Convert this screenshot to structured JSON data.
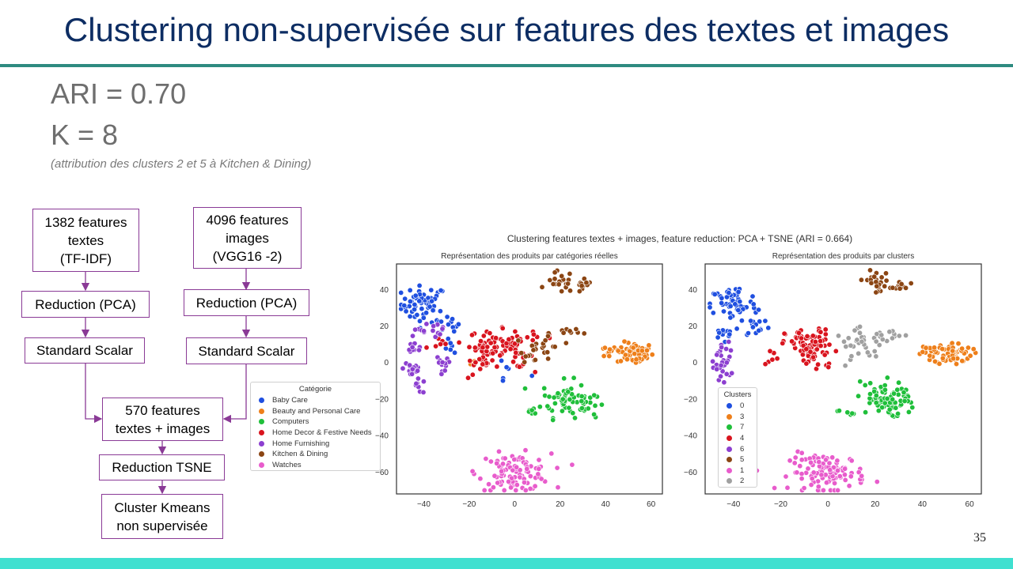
{
  "slide": {
    "title": "Clustering non-supervisée sur features des textes et images",
    "metric_ari": "ARI = 0.70",
    "metric_k": "K = 8",
    "note": "(attribution des clusters 2 et 5 à Kitchen & Dining)",
    "page_number": "35"
  },
  "flow": {
    "text_features": [
      "1382 features",
      "textes",
      "(TF-IDF)"
    ],
    "image_features": [
      "4096 features",
      "images",
      "(VGG16 -2)"
    ],
    "reduction_pca_text": "Reduction (PCA)",
    "reduction_pca_image": "Reduction (PCA)",
    "scaler_text": "Standard Scalar",
    "scaler_image": "Standard Scalar",
    "combined": [
      "570 features",
      "textes + images"
    ],
    "reduction_tsne": "Reduction TSNE",
    "kmeans": [
      "Cluster Kmeans",
      "non supervisée"
    ]
  },
  "colors": {
    "title": "#0d2d63",
    "rule": "#2e8b80",
    "bottom_bar": "#40e0d0",
    "box_border": "#8a3a96"
  },
  "chart_data": [
    {
      "type": "scatter",
      "figure_title": "Clustering features textes + images, feature reduction: PCA + TSNE (ARI = 0.664)",
      "title": "Représentation des produits par catégories réelles",
      "xlim": [
        -52,
        65
      ],
      "ylim": [
        -72,
        54
      ],
      "xticks": [
        -40,
        -20,
        0,
        20,
        40,
        60
      ],
      "yticks": [
        40,
        20,
        0,
        -20,
        -40,
        -60
      ],
      "grid": false,
      "legend": {
        "title": "Catégorie",
        "placement": "left-outside",
        "entries": [
          {
            "name": "Baby Care",
            "color": "#1f4fe0"
          },
          {
            "name": "Beauty and Personal Care",
            "color": "#ee7f1a"
          },
          {
            "name": "Computers",
            "color": "#1fbf3a"
          },
          {
            "name": "Home Decor & Festive Needs",
            "color": "#d9141e"
          },
          {
            "name": "Home Furnishing",
            "color": "#8c3fd0"
          },
          {
            "name": "Kitchen & Dining",
            "color": "#8b4513"
          },
          {
            "name": "Watches",
            "color": "#e85ccc"
          }
        ]
      },
      "series": [
        {
          "name": "Baby Care",
          "color": "#1f4fe0",
          "groups": [
            [
              -40,
              32,
              5,
              5,
              60
            ],
            [
              -30,
              20,
              3,
              3,
              12
            ],
            [
              -28,
              8,
              2,
              2,
              6
            ],
            [
              -3,
              -5,
              5,
              4,
              6
            ]
          ]
        },
        {
          "name": "Beauty and Personal Care",
          "color": "#ee7f1a",
          "groups": [
            [
              53,
              5,
              4,
              3,
              60
            ],
            [
              42,
              6,
              3,
              2,
              12
            ],
            [
              -18,
              0,
              1,
              1,
              3
            ]
          ]
        },
        {
          "name": "Computers",
          "color": "#1fbf3a",
          "groups": [
            [
              22,
              -20,
              5,
              5,
              50
            ],
            [
              30,
              -22,
              3,
              4,
              20
            ],
            [
              8,
              -27,
              2,
              1,
              6
            ]
          ]
        },
        {
          "name": "Home Decor & Festive Needs",
          "color": "#d9141e",
          "groups": [
            [
              -10,
              10,
              5,
              4,
              55
            ],
            [
              0,
              5,
              4,
              4,
              25
            ],
            [
              -15,
              -3,
              4,
              3,
              12
            ],
            [
              10,
              14,
              5,
              2,
              10
            ],
            [
              -34,
              10,
              3,
              3,
              6
            ]
          ]
        },
        {
          "name": "Home Furnishing",
          "color": "#8c3fd0",
          "groups": [
            [
              -45,
              -3,
              2,
              3,
              20
            ],
            [
              -44,
              8,
              2,
              2,
              10
            ],
            [
              -42,
              -13,
              2,
              2,
              8
            ],
            [
              -42,
              18,
              2,
              2,
              6
            ],
            [
              -32,
              -3,
              2,
              4,
              12
            ],
            [
              -33,
              17,
              2,
              2,
              8
            ]
          ]
        },
        {
          "name": "Kitchen & Dining",
          "color": "#8b4513",
          "groups": [
            [
              20,
              44,
              3,
              3,
              20
            ],
            [
              30,
              41,
              2,
              2,
              12
            ],
            [
              26,
              17,
              5,
              1,
              10
            ],
            [
              13,
              8,
              4,
              4,
              18
            ],
            [
              6,
              3,
              2,
              2,
              6
            ]
          ]
        },
        {
          "name": "Watches",
          "color": "#e85ccc",
          "groups": [
            [
              0,
              -60,
              8,
              5,
              110
            ]
          ]
        }
      ]
    },
    {
      "type": "scatter",
      "title": "Représentation des produits par clusters",
      "xlim": [
        -52,
        65
      ],
      "ylim": [
        -72,
        54
      ],
      "xticks": [
        -40,
        -20,
        0,
        20,
        40,
        60
      ],
      "yticks": [
        40,
        20,
        0,
        -20,
        -40,
        -60
      ],
      "grid": false,
      "legend": {
        "title": "Clusters",
        "placement": "lower-left",
        "entries": [
          {
            "name": "0",
            "color": "#1f4fe0"
          },
          {
            "name": "3",
            "color": "#ee7f1a"
          },
          {
            "name": "7",
            "color": "#1fbf3a"
          },
          {
            "name": "4",
            "color": "#d9141e"
          },
          {
            "name": "6",
            "color": "#8c3fd0"
          },
          {
            "name": "5",
            "color": "#8b4513"
          },
          {
            "name": "1",
            "color": "#e85ccc"
          },
          {
            "name": "2",
            "color": "#a0a0a0"
          }
        ]
      },
      "series": [
        {
          "name": "0",
          "color": "#1f4fe0",
          "groups": [
            [
              -40,
              32,
              5,
              5,
              60
            ],
            [
              -30,
              20,
              3,
              3,
              15
            ],
            [
              -43,
              17,
              3,
              2,
              12
            ]
          ]
        },
        {
          "name": "3",
          "color": "#ee7f1a",
          "groups": [
            [
              53,
              5,
              4,
              3,
              60
            ],
            [
              42,
              6,
              3,
              2,
              15
            ]
          ]
        },
        {
          "name": "7",
          "color": "#1fbf3a",
          "groups": [
            [
              22,
              -20,
              5,
              5,
              55
            ],
            [
              30,
              -22,
              3,
              4,
              20
            ],
            [
              8,
              -27,
              2,
              1,
              6
            ]
          ]
        },
        {
          "name": "4",
          "color": "#d9141e",
          "groups": [
            [
              -8,
              10,
              5,
              4,
              70
            ],
            [
              -5,
              3,
              4,
              4,
              20
            ],
            [
              -22,
              3,
              2,
              3,
              6
            ]
          ]
        },
        {
          "name": "6",
          "color": "#8c3fd0",
          "groups": [
            [
              -45,
              -3,
              2,
              3,
              22
            ],
            [
              -44,
              8,
              2,
              2,
              10
            ]
          ]
        },
        {
          "name": "5",
          "color": "#8b4513",
          "groups": [
            [
              20,
              44,
              3,
              3,
              22
            ],
            [
              30,
              41,
              2,
              2,
              12
            ]
          ]
        },
        {
          "name": "1",
          "color": "#e85ccc",
          "groups": [
            [
              0,
              -60,
              8,
              5,
              110
            ]
          ]
        },
        {
          "name": "2",
          "color": "#a0a0a0",
          "groups": [
            [
              15,
              10,
              6,
              4,
              35
            ],
            [
              25,
              15,
              4,
              2,
              10
            ]
          ]
        }
      ]
    }
  ]
}
